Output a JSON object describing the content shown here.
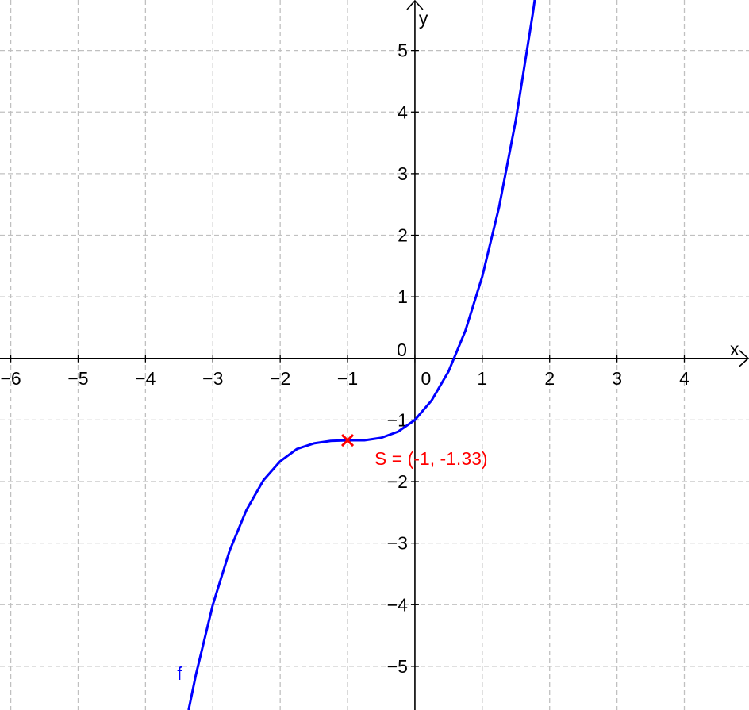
{
  "chart_data": {
    "type": "line",
    "x": [
      -3.36,
      -3.25,
      -3,
      -2.75,
      -2.5,
      -2.25,
      -2,
      -1.75,
      -1.5,
      -1.25,
      -1,
      -0.75,
      -0.5,
      -0.25,
      0,
      0.25,
      0.5,
      0.75,
      1,
      1.25,
      1.5,
      1.75,
      1.78
    ],
    "series": [
      {
        "name": "f",
        "color": "#0000ff",
        "values": [
          -5.71,
          -5.13,
          -4.0,
          -3.12,
          -2.46,
          -1.98,
          -1.67,
          -1.47,
          -1.38,
          -1.34,
          -1.33,
          -1.33,
          -1.29,
          -1.19,
          -1.0,
          -0.68,
          -0.21,
          0.45,
          1.33,
          2.46,
          3.88,
          5.6,
          5.83
        ]
      }
    ],
    "point": {
      "label": "S = (-1, -1.33)",
      "x": -1,
      "y": -1.33,
      "color": "#ff0000"
    },
    "x_label": "x",
    "y_label": "y",
    "xlim": [
      -6.16,
      4.96
    ],
    "ylim": [
      -5.71,
      5.82
    ],
    "xticks": [
      {
        "value": -6,
        "label": "−6"
      },
      {
        "value": -5,
        "label": "−5"
      },
      {
        "value": -4,
        "label": "−4"
      },
      {
        "value": -3,
        "label": "−3"
      },
      {
        "value": -2,
        "label": "−2"
      },
      {
        "value": -1,
        "label": "−1"
      },
      0,
      1,
      2,
      3,
      4
    ],
    "yticks": [
      {
        "value": -5,
        "label": "−5"
      },
      {
        "value": -4,
        "label": "−4"
      },
      {
        "value": -3,
        "label": "−3"
      },
      {
        "value": -2,
        "label": "−2"
      },
      {
        "value": -1,
        "label": "−1"
      },
      0,
      1,
      2,
      3,
      4,
      5
    ],
    "grid": true
  }
}
